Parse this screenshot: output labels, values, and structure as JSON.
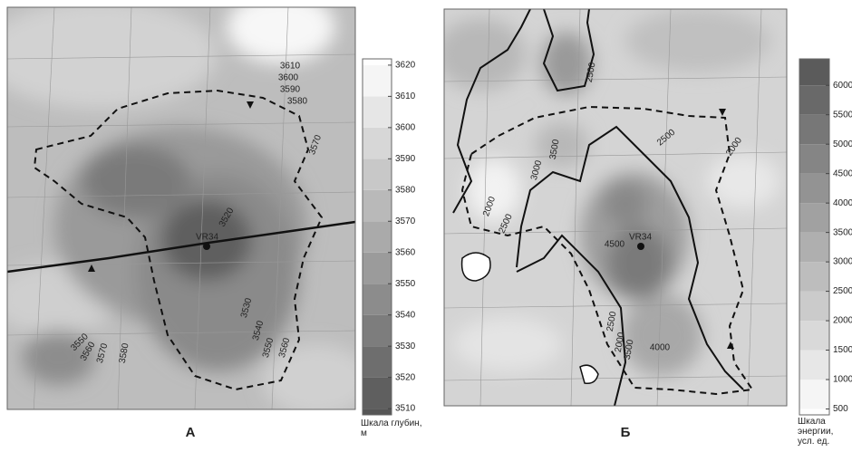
{
  "chart_data": [
    {
      "type": "contour",
      "panel_label": "А",
      "colorbar_label": "Шкала глубин, м",
      "clim": [
        3508,
        3622
      ],
      "colors": [
        "#555555",
        "#ffffff"
      ],
      "cticks": [
        3510,
        3520,
        3530,
        3540,
        3550,
        3560,
        3570,
        3580,
        3590,
        3600,
        3610,
        3620
      ],
      "contour_labels": [
        3610,
        3600,
        3590,
        3580,
        3570,
        3520,
        3530,
        3540,
        3550,
        3560,
        3550,
        3560,
        3570,
        3580
      ],
      "well": "VR34"
    },
    {
      "type": "contour",
      "panel_label": "Б",
      "colorbar_label": "Шкала энергии, усл. ед.",
      "clim": [
        400,
        6450
      ],
      "colors": [
        "#ffffff",
        "#555555"
      ],
      "cticks": [
        500,
        1000,
        1500,
        2000,
        2500,
        3000,
        3500,
        4000,
        4500,
        5000,
        5500,
        6000
      ],
      "contour_labels": [
        2500,
        2500,
        2000,
        3500,
        3000,
        2000,
        2500,
        4500,
        2500,
        2000,
        3500,
        4000
      ],
      "well": "VR34"
    }
  ]
}
